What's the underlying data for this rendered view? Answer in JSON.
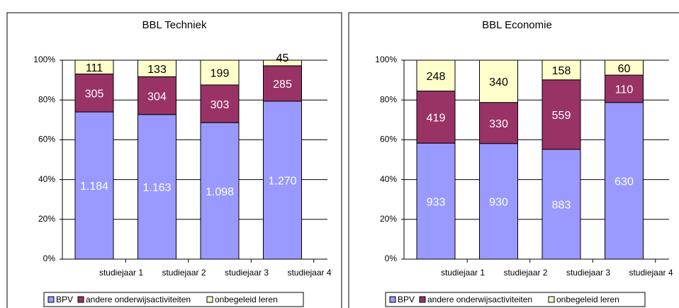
{
  "chart_data": [
    {
      "type": "bar",
      "stacking": "percent",
      "title": "BBL Techniek",
      "categories": [
        "studiejaar 1",
        "studiejaar 2",
        "studiejaar 3",
        "studiejaar 4"
      ],
      "series": [
        {
          "name": "BPV",
          "color": "#9999ff",
          "label_color": "#ffffff",
          "values": [
            1184,
            1163,
            1098,
            1270
          ],
          "value_labels": [
            "1.184",
            "1.163",
            "1.098",
            "1.270"
          ]
        },
        {
          "name": "andere onderwijsactiviteiten",
          "color": "#993366",
          "label_color": "#ffffff",
          "values": [
            305,
            304,
            303,
            285
          ]
        },
        {
          "name": "onbegeleid leren",
          "color": "#ffffcc",
          "label_color": "#000000",
          "values": [
            111,
            133,
            199,
            45
          ]
        }
      ],
      "ylim": [
        0,
        100
      ],
      "yticks": [
        {
          "value": 0,
          "label": "0%"
        },
        {
          "value": 20,
          "label": "20%"
        },
        {
          "value": 40,
          "label": "40%"
        },
        {
          "value": 60,
          "label": "60%"
        },
        {
          "value": 80,
          "label": "80%"
        },
        {
          "value": 100,
          "label": "100%"
        }
      ],
      "grid": true,
      "legend": "bottom"
    },
    {
      "type": "bar",
      "stacking": "percent",
      "title": "BBL Economie",
      "categories": [
        "studiejaar 1",
        "studiejaar 2",
        "studiejaar 3",
        "studiejaar 4"
      ],
      "series": [
        {
          "name": "BPV",
          "color": "#9999ff",
          "label_color": "#ffffff",
          "values": [
            933,
            930,
            883,
            630
          ]
        },
        {
          "name": "andere onderwijsactiviteiten",
          "color": "#993366",
          "label_color": "#ffffff",
          "values": [
            419,
            330,
            559,
            110
          ]
        },
        {
          "name": "onbegeleid leren",
          "color": "#ffffcc",
          "label_color": "#000000",
          "values": [
            248,
            340,
            158,
            60
          ]
        }
      ],
      "ylim": [
        0,
        100
      ],
      "yticks": [
        {
          "value": 0,
          "label": "0%"
        },
        {
          "value": 20,
          "label": "20%"
        },
        {
          "value": 40,
          "label": "40%"
        },
        {
          "value": 60,
          "label": "60%"
        },
        {
          "value": 80,
          "label": "80%"
        },
        {
          "value": 100,
          "label": "100%"
        }
      ],
      "grid": true,
      "legend": "bottom"
    }
  ]
}
